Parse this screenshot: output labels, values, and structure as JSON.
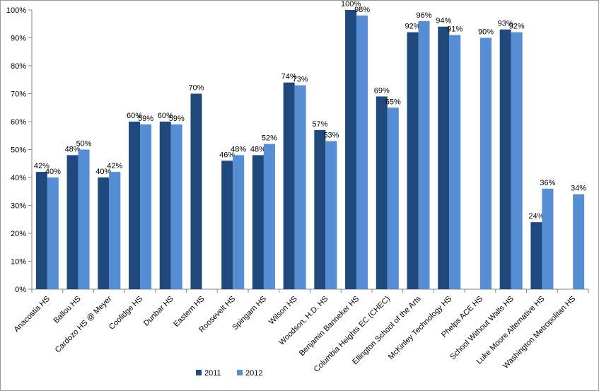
{
  "chart_data": {
    "type": "bar",
    "title": "",
    "xlabel": "",
    "ylabel": "",
    "ylim": [
      0,
      100
    ],
    "y_tick_values": [
      0,
      10,
      20,
      30,
      40,
      50,
      60,
      70,
      80,
      90,
      100
    ],
    "y_tick_labels": [
      "0%",
      "10%",
      "20%",
      "30%",
      "40%",
      "50%",
      "60%",
      "70%",
      "80%",
      "90%",
      "100%"
    ],
    "grid": false,
    "legend_position": "bottom",
    "categories": [
      "Anacostia HS",
      "Ballou HS",
      "Cardozo HS @ Meyer",
      "Coolidge HS",
      "Dunbar HS",
      "Eastern HS",
      "Roosevelt HS",
      "Spingarn HS",
      "Wilson HS",
      "Woodson, H.D. HS",
      "Benjamin Banneker HS",
      "Columbia Heights EC (CHEC)",
      "Ellington School of the Arts",
      "McKinley Technology HS",
      "Phelps ACE HS",
      "School Without Walls HS",
      "Luke Moore Alternative HS",
      "Washington Metropolitan HS"
    ],
    "series": [
      {
        "name": "2011",
        "color": "#1f497d",
        "values": [
          42,
          48,
          40,
          60,
          60,
          70,
          46,
          48,
          74,
          57,
          100,
          69,
          92,
          94,
          null,
          93,
          24,
          null
        ],
        "labels": [
          "42%",
          "48%",
          "40%",
          "60%",
          "60%",
          "70%",
          "46%",
          "48%",
          "74%",
          "57%",
          "100%",
          "69%",
          "92%",
          "94%",
          "",
          "93%",
          "24%",
          ""
        ]
      },
      {
        "name": "2012",
        "color": "#558ed5",
        "values": [
          40,
          50,
          42,
          59,
          59,
          null,
          48,
          52,
          73,
          53,
          98,
          65,
          96,
          91,
          90,
          92,
          36,
          34
        ],
        "labels": [
          "40%",
          "50%",
          "42%",
          "59%",
          "59%",
          "",
          "48%",
          "52%",
          "73%",
          "53%",
          "98%",
          "65%",
          "96%",
          "91%",
          "90%",
          "92%",
          "36%",
          "34%"
        ]
      }
    ]
  }
}
